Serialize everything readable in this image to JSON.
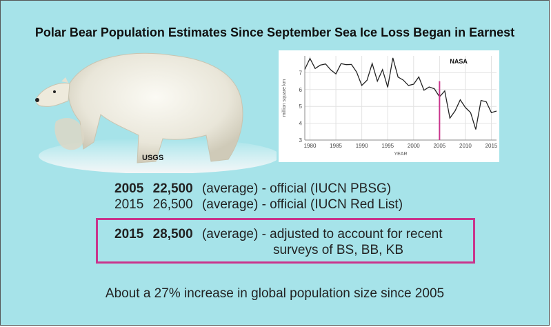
{
  "page": {
    "title": "Polar Bear Population Estimates Since September Sea Ice Loss Began in Earnest",
    "photo_credit": "USGS",
    "footer": "About a 27% increase in global population size since 2005"
  },
  "estimates": [
    {
      "year": "2005",
      "value": "22,500",
      "desc": "(average) - official (IUCN PBSG)",
      "bold": true
    },
    {
      "year": "2015",
      "value": "26,500",
      "desc": "(average) - official (IUCN Red List)",
      "bold": false
    }
  ],
  "highlight": {
    "year": "2015",
    "value": "28,500",
    "desc_line1": "(average) - adjusted to account for recent",
    "desc_line2": "surveys of BS, BB, KB"
  },
  "colors": {
    "background": "#a6e3e9",
    "highlight_border": "#c9348c",
    "marker_line": "#c9348c",
    "series_line": "#222222"
  },
  "chart_data": {
    "type": "line",
    "credit": "NASA",
    "xlabel": "YEAR",
    "ylabel": "million square km",
    "xlim": [
      1979,
      2016
    ],
    "ylim": [
      3,
      8
    ],
    "x_ticks": [
      1980,
      1985,
      1990,
      1995,
      2000,
      2005,
      2010,
      2015
    ],
    "y_ticks": [
      3,
      4,
      5,
      6,
      7
    ],
    "grid": true,
    "marker_x": 2005,
    "x": [
      1979,
      1980,
      1981,
      1982,
      1983,
      1984,
      1985,
      1986,
      1987,
      1988,
      1989,
      1990,
      1991,
      1992,
      1993,
      1994,
      1995,
      1996,
      1997,
      1998,
      1999,
      2000,
      2001,
      2002,
      2003,
      2004,
      2005,
      2006,
      2007,
      2008,
      2009,
      2010,
      2011,
      2012,
      2013,
      2014,
      2015,
      2016
    ],
    "values": [
      7.2,
      7.85,
      7.25,
      7.45,
      7.52,
      7.17,
      6.93,
      7.54,
      7.48,
      7.49,
      7.04,
      6.24,
      6.55,
      7.55,
      6.5,
      7.18,
      6.13,
      7.88,
      6.74,
      6.56,
      6.24,
      6.32,
      6.75,
      5.96,
      6.15,
      6.05,
      5.57,
      5.92,
      4.3,
      4.73,
      5.39,
      4.93,
      4.63,
      3.63,
      5.35,
      5.28,
      4.63,
      4.72
    ]
  }
}
